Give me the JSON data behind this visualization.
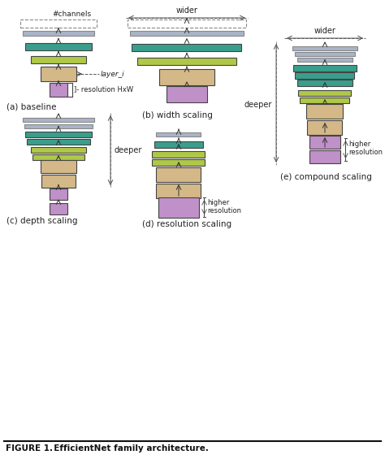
{
  "title": "FIGURE 1.  EfficientNet family architecture.",
  "bg_color": "#ffffff",
  "colors": {
    "blue_thin": "#aab4c8",
    "green_dark": "#3a9e8c",
    "green_light": "#b0c848",
    "tan": "#d4b888",
    "purple": "#c090c8",
    "dash_border": "#888888"
  },
  "subfigs": {
    "a_label": "(a) baseline",
    "b_label": "(b) width scaling",
    "c_label": "(c) depth scaling",
    "d_label": "(d) resolution scaling",
    "e_label": "(e) compound scaling"
  }
}
